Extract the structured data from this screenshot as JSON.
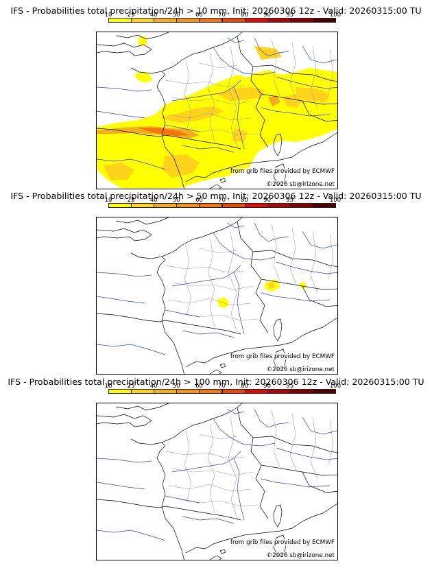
{
  "colorbar": {
    "tick_labels": [
      "10",
      "25",
      "40",
      "50",
      "60",
      "70",
      "80",
      "90",
      "95",
      "100"
    ],
    "colors": [
      "#ffff00",
      "#ffd21c",
      "#f6ad1d",
      "#f29217",
      "#f27610",
      "#e64a0a",
      "#db0e07",
      "#aa0707",
      "#800000",
      "#4d0000"
    ]
  },
  "credits": {
    "source": "from grib files provided by ECMWF",
    "copyright": "©2026 sb@irizone.net"
  },
  "panels": [
    {
      "title": "IFS - Probabilities total precipitation/24h > 10 mm, Init: 20260306 12z - Valid: 20260315:00 TU",
      "threshold_mm": 10
    },
    {
      "title": "IFS - Probabilities total precipitation/24h > 50 mm, Init: 20260306 12z - Valid: 20260315:00 TU",
      "threshold_mm": 50
    },
    {
      "title": "IFS - Probabilities total precipitation/24h > 100 mm, Init: 20260306 12z - Valid: 20260315:00 TU",
      "threshold_mm": 100
    }
  ]
}
